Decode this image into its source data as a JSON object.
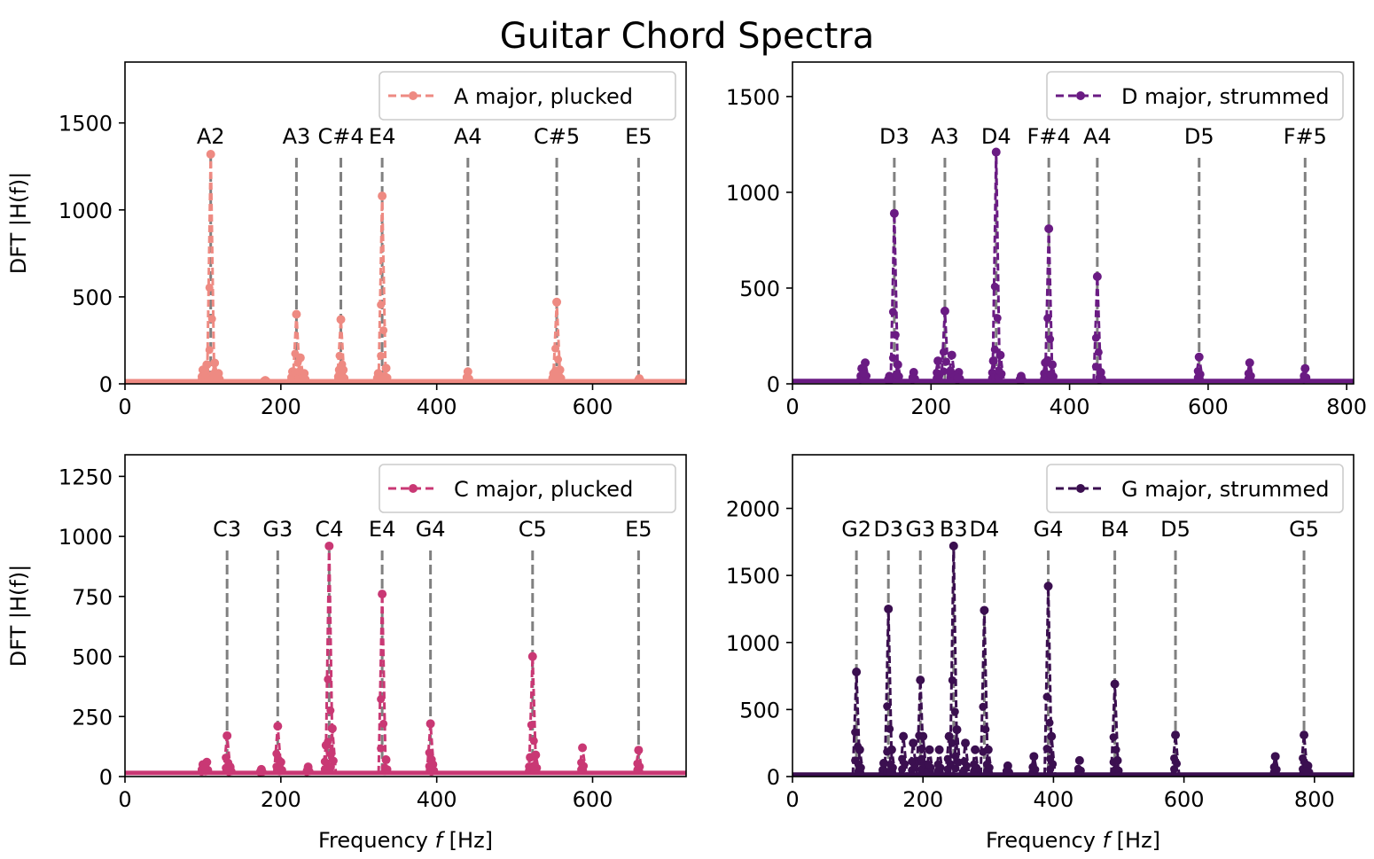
{
  "figure": {
    "title": "Guitar Chord Spectra"
  },
  "chart_data": [
    {
      "type": "line",
      "series": [
        {
          "name": "A major, plucked",
          "color": "#ee8a82",
          "peaks": [
            [
              100,
              80
            ],
            [
              105,
              110
            ],
            [
              110,
              1320
            ],
            [
              115,
              120
            ],
            [
              120,
              60
            ],
            [
              180,
              20
            ],
            [
              215,
              70
            ],
            [
              220,
              400
            ],
            [
              225,
              150
            ],
            [
              230,
              60
            ],
            [
              275,
              80
            ],
            [
              277,
              370
            ],
            [
              280,
              80
            ],
            [
              325,
              60
            ],
            [
              330,
              1080
            ],
            [
              335,
              90
            ],
            [
              440,
              70
            ],
            [
              550,
              60
            ],
            [
              554,
              470
            ],
            [
              558,
              80
            ],
            [
              660,
              30
            ]
          ]
        }
      ],
      "notes": [
        {
          "label": "A2",
          "x": 110
        },
        {
          "label": "A3",
          "x": 220
        },
        {
          "label": "C#4",
          "x": 277
        },
        {
          "label": "E4",
          "x": 330
        },
        {
          "label": "A4",
          "x": 440
        },
        {
          "label": "C#5",
          "x": 554
        },
        {
          "label": "E5",
          "x": 659
        }
      ],
      "xlim": [
        0,
        720
      ],
      "ylim": [
        0,
        1850
      ],
      "xticks": [
        0,
        200,
        400,
        600
      ],
      "yticks": [
        0,
        500,
        1000,
        1500
      ],
      "xlabel": "",
      "ylabel": "DFT |H(f)|",
      "legend": "upper right",
      "baseline": 15
    },
    {
      "type": "line",
      "series": [
        {
          "name": "D major, strummed",
          "color": "#6a1b83",
          "peaks": [
            [
              100,
              80
            ],
            [
              105,
              110
            ],
            [
              140,
              40
            ],
            [
              147,
              890
            ],
            [
              152,
              100
            ],
            [
              175,
              60
            ],
            [
              210,
              120
            ],
            [
              220,
              380
            ],
            [
              230,
              150
            ],
            [
              240,
              60
            ],
            [
              290,
              120
            ],
            [
              294,
              1210
            ],
            [
              300,
              150
            ],
            [
              330,
              40
            ],
            [
              365,
              110
            ],
            [
              370,
              810
            ],
            [
              375,
              100
            ],
            [
              440,
              560
            ],
            [
              445,
              60
            ],
            [
              587,
              140
            ],
            [
              660,
              110
            ],
            [
              740,
              80
            ]
          ]
        }
      ],
      "notes": [
        {
          "label": "D3",
          "x": 147
        },
        {
          "label": "A3",
          "x": 220
        },
        {
          "label": "D4",
          "x": 294
        },
        {
          "label": "F#4",
          "x": 370
        },
        {
          "label": "A4",
          "x": 440
        },
        {
          "label": "D5",
          "x": 587
        },
        {
          "label": "F#5",
          "x": 740
        }
      ],
      "xlim": [
        0,
        810
      ],
      "ylim": [
        0,
        1680
      ],
      "xticks": [
        0,
        200,
        400,
        600,
        800
      ],
      "yticks": [
        0,
        500,
        1000,
        1500
      ],
      "xlabel": "",
      "ylabel": "",
      "legend": "upper right",
      "baseline": 15
    },
    {
      "type": "line",
      "series": [
        {
          "name": "C major, plucked",
          "color": "#c93874",
          "peaks": [
            [
              100,
              50
            ],
            [
              105,
              60
            ],
            [
              131,
              170
            ],
            [
              135,
              40
            ],
            [
              175,
              30
            ],
            [
              196,
              210
            ],
            [
              200,
              60
            ],
            [
              235,
              40
            ],
            [
              258,
              130
            ],
            [
              262,
              960
            ],
            [
              266,
              200
            ],
            [
              330,
              760
            ],
            [
              335,
              70
            ],
            [
              392,
              220
            ],
            [
              395,
              50
            ],
            [
              520,
              80
            ],
            [
              523,
              500
            ],
            [
              527,
              90
            ],
            [
              587,
              120
            ],
            [
              659,
              110
            ]
          ]
        }
      ],
      "notes": [
        {
          "label": "C3",
          "x": 131
        },
        {
          "label": "G3",
          "x": 196
        },
        {
          "label": "C4",
          "x": 262
        },
        {
          "label": "E4",
          "x": 330
        },
        {
          "label": "G4",
          "x": 392
        },
        {
          "label": "C5",
          "x": 523
        },
        {
          "label": "E5",
          "x": 659
        }
      ],
      "xlim": [
        0,
        720
      ],
      "ylim": [
        0,
        1340
      ],
      "xticks": [
        0,
        200,
        400,
        600
      ],
      "yticks": [
        0,
        250,
        500,
        750,
        1000,
        1250
      ],
      "xlabel": "Frequency f [Hz]",
      "ylabel": "DFT |H(f)|",
      "legend": "upper right",
      "baseline": 15
    },
    {
      "type": "line",
      "series": [
        {
          "name": "G major, strummed",
          "color": "#3b0f50",
          "peaks": [
            [
              98,
              780
            ],
            [
              103,
              200
            ],
            [
              140,
              100
            ],
            [
              147,
              1250
            ],
            [
              152,
              200
            ],
            [
              170,
              300
            ],
            [
              185,
              250
            ],
            [
              196,
              720
            ],
            [
              200,
              300
            ],
            [
              210,
              200
            ],
            [
              225,
              200
            ],
            [
              240,
              300
            ],
            [
              247,
              1720
            ],
            [
              252,
              350
            ],
            [
              265,
              250
            ],
            [
              280,
              200
            ],
            [
              294,
              1240
            ],
            [
              300,
              200
            ],
            [
              330,
              80
            ],
            [
              370,
              150
            ],
            [
              392,
              1420
            ],
            [
              397,
              300
            ],
            [
              440,
              120
            ],
            [
              494,
              690
            ],
            [
              498,
              120
            ],
            [
              587,
              310
            ],
            [
              740,
              150
            ],
            [
              784,
              310
            ],
            [
              790,
              80
            ]
          ]
        }
      ],
      "notes": [
        {
          "label": "G2",
          "x": 98
        },
        {
          "label": "D3",
          "x": 147
        },
        {
          "label": "G3",
          "x": 196
        },
        {
          "label": "B3",
          "x": 247
        },
        {
          "label": "D4",
          "x": 294
        },
        {
          "label": "G4",
          "x": 392
        },
        {
          "label": "B4",
          "x": 494
        },
        {
          "label": "D5",
          "x": 587
        },
        {
          "label": "G5",
          "x": 784
        }
      ],
      "xlim": [
        0,
        860
      ],
      "ylim": [
        0,
        2400
      ],
      "xticks": [
        0,
        200,
        400,
        600,
        800
      ],
      "yticks": [
        0,
        500,
        1000,
        1500,
        2000
      ],
      "xlabel": "Frequency f [Hz]",
      "ylabel": "",
      "legend": "upper right",
      "baseline": 15
    }
  ]
}
